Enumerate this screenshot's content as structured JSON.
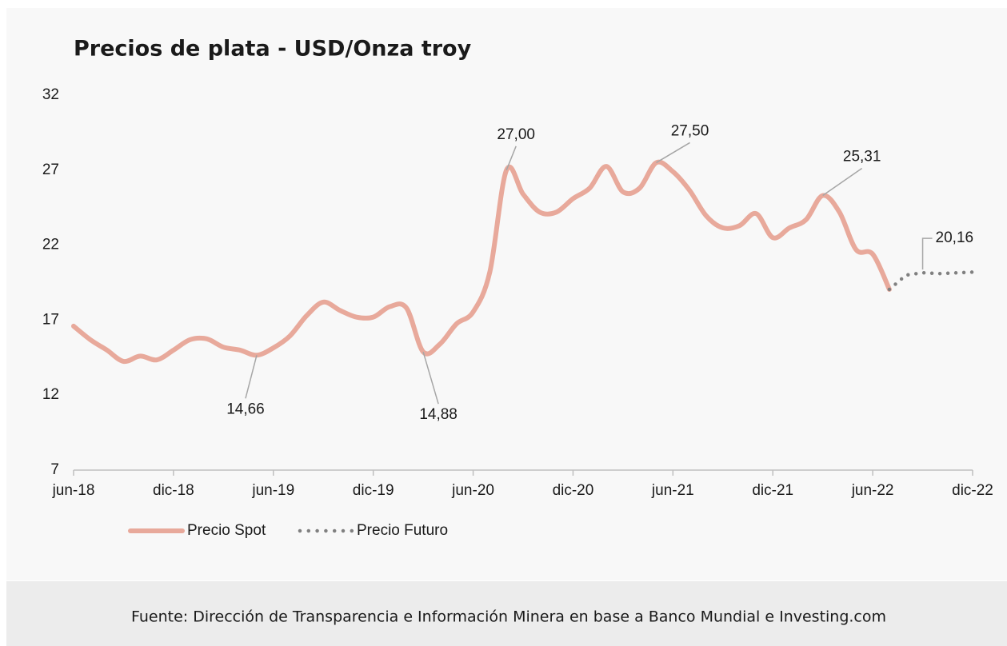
{
  "chart_data": {
    "type": "line",
    "title": "Precios de plata - USD/Onza troy",
    "source": "Fuente: Dirección de Transparencia e Información Minera en base a Banco Mundial e Investing.com",
    "categories": [
      "jun-18",
      null,
      null,
      null,
      null,
      null,
      "dic-18",
      null,
      null,
      null,
      null,
      null,
      "jun-19",
      null,
      null,
      null,
      null,
      null,
      "dic-19",
      null,
      null,
      null,
      null,
      null,
      "jun-20",
      null,
      null,
      null,
      null,
      null,
      "dic-20",
      null,
      null,
      null,
      null,
      null,
      "jun-21",
      null,
      null,
      null,
      null,
      null,
      "dic-21",
      null,
      null,
      null,
      null,
      null,
      "jun-22",
      null,
      null,
      null,
      null,
      null,
      "dic-22"
    ],
    "series": [
      {
        "name": "Precio Spot",
        "color": "#e8a99b",
        "values": [
          16.6,
          15.7,
          15.0,
          14.25,
          14.6,
          14.35,
          15.0,
          15.7,
          15.75,
          15.2,
          15.0,
          14.66,
          15.15,
          15.95,
          17.3,
          18.2,
          17.65,
          17.2,
          17.2,
          17.9,
          17.8,
          14.88,
          15.4,
          16.75,
          17.55,
          20.2,
          27.0,
          25.4,
          24.2,
          24.2,
          25.1,
          25.8,
          27.25,
          25.55,
          25.8,
          27.5,
          26.9,
          25.65,
          23.95,
          23.15,
          23.3,
          24.1,
          22.5,
          23.15,
          23.7,
          25.31,
          24.2,
          21.7,
          21.4,
          19.05,
          null,
          null,
          null,
          null,
          null
        ],
        "value_labels": [
          null,
          null,
          null,
          null,
          null,
          null,
          null,
          null,
          null,
          null,
          null,
          "14,66",
          null,
          null,
          null,
          null,
          null,
          null,
          null,
          null,
          null,
          "14,88",
          null,
          null,
          null,
          null,
          "27,00",
          null,
          null,
          null,
          null,
          null,
          null,
          null,
          null,
          "27,50",
          null,
          null,
          null,
          null,
          null,
          null,
          null,
          null,
          null,
          "25,31",
          null,
          null,
          null,
          null,
          null,
          null,
          null,
          null,
          null
        ]
      },
      {
        "name": "Precio Futuro",
        "color": "#808080",
        "dotted": true,
        "values": [
          null,
          null,
          null,
          null,
          null,
          null,
          null,
          null,
          null,
          null,
          null,
          null,
          null,
          null,
          null,
          null,
          null,
          null,
          null,
          null,
          null,
          null,
          null,
          null,
          null,
          null,
          null,
          null,
          null,
          null,
          null,
          null,
          null,
          null,
          null,
          null,
          null,
          null,
          null,
          null,
          null,
          null,
          null,
          null,
          null,
          null,
          null,
          null,
          null,
          19.05,
          20.0,
          20.16,
          20.1,
          20.15,
          20.2
        ],
        "value_labels": [
          null,
          null,
          null,
          null,
          null,
          null,
          null,
          null,
          null,
          null,
          null,
          null,
          null,
          null,
          null,
          null,
          null,
          null,
          null,
          null,
          null,
          null,
          null,
          null,
          null,
          null,
          null,
          null,
          null,
          null,
          null,
          null,
          null,
          null,
          null,
          null,
          null,
          null,
          null,
          null,
          null,
          null,
          null,
          null,
          null,
          null,
          null,
          null,
          null,
          null,
          null,
          "20,16",
          null,
          null,
          null
        ]
      }
    ],
    "ylim": [
      7,
      32
    ],
    "yticks": [
      7,
      12,
      17,
      22,
      27,
      32
    ],
    "grid": false,
    "legend": "bottom-left"
  }
}
